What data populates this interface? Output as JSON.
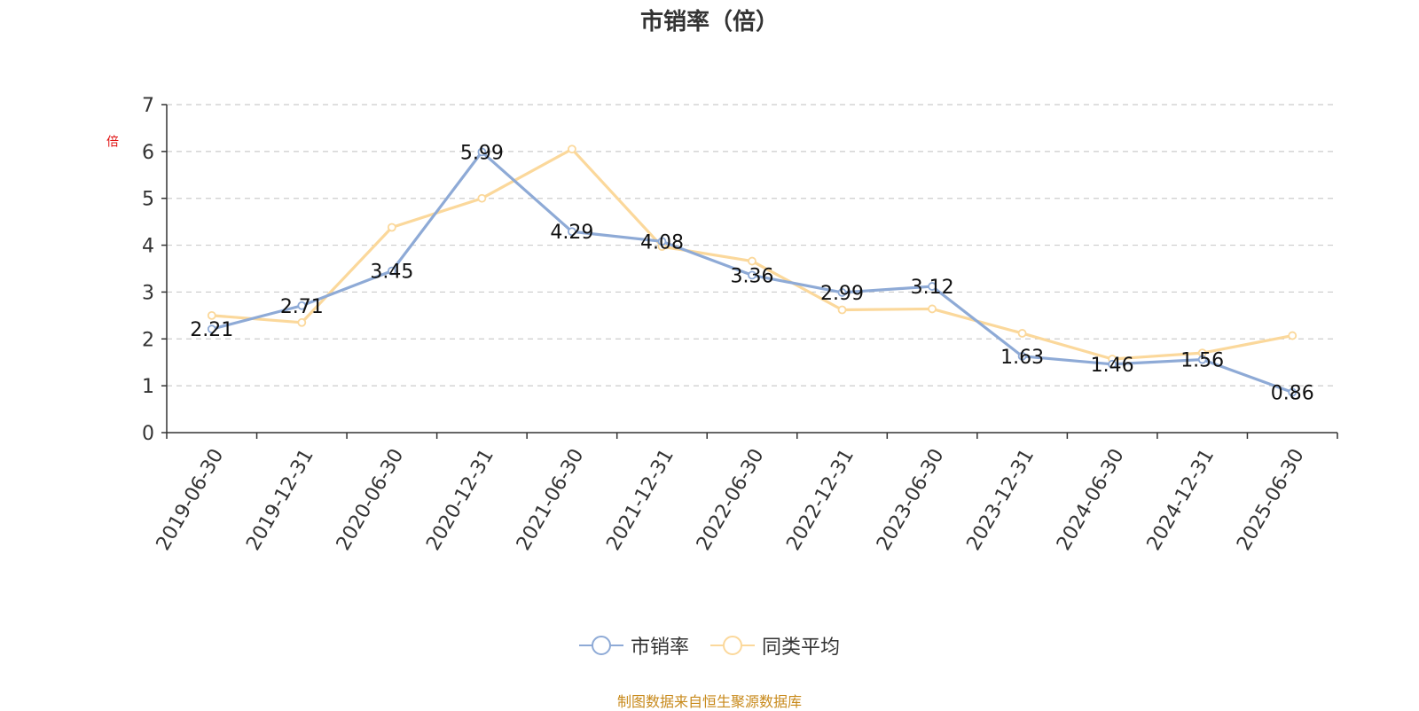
{
  "chart_data": {
    "type": "line",
    "title": "市销率（倍）",
    "ylabel": "倍",
    "ylim": [
      0,
      7
    ],
    "yticks": [
      0,
      1,
      2,
      3,
      4,
      5,
      6,
      7
    ],
    "grid": true,
    "legend_position": "bottom-center",
    "categories": [
      "2019-06-30",
      "2019-12-31",
      "2020-06-30",
      "2020-12-31",
      "2021-06-30",
      "2021-12-31",
      "2022-06-30",
      "2022-12-31",
      "2023-06-30",
      "2023-12-31",
      "2024-06-30",
      "2024-12-31",
      "2025-06-30"
    ],
    "series": [
      {
        "name": "市销率",
        "color": "#8eaad6",
        "values": [
          2.21,
          2.71,
          3.45,
          5.99,
          4.29,
          4.08,
          3.36,
          2.99,
          3.12,
          1.63,
          1.46,
          1.56,
          0.86
        ],
        "show_labels": true
      },
      {
        "name": "同类平均",
        "color": "#fbd89b",
        "values": [
          2.5,
          2.35,
          4.38,
          5.0,
          6.05,
          3.97,
          3.66,
          2.62,
          2.64,
          2.12,
          1.57,
          1.7,
          2.07
        ],
        "show_labels": false
      }
    ]
  },
  "source_note": "制图数据来自恒生聚源数据库"
}
